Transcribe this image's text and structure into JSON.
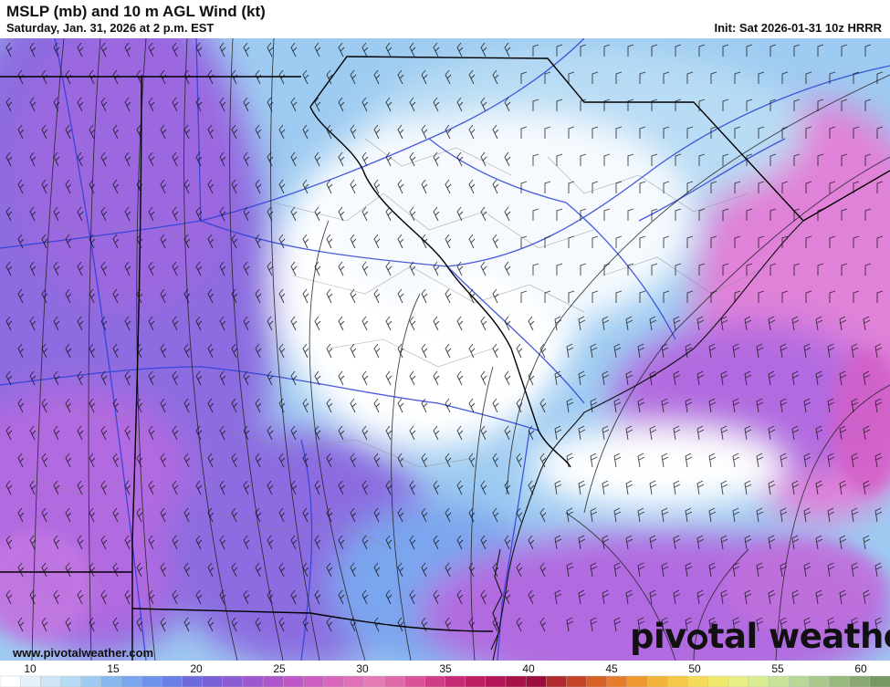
{
  "header": {
    "title": "MSLP (mb) and 10 m AGL Wind (kt)",
    "subtitle": "Saturday, Jan. 31, 2026 at 2 p.m. EST",
    "init": "Init: Sat 2026-01-31 10z HRRR"
  },
  "map": {
    "variable": "10 m wind speed (kt) shaded, MSLP (mb) contours, wind barbs",
    "colors": {
      "calm": "#ffffff",
      "light_blue": "#b8dcf4",
      "mid_blue": "#7aa6ee",
      "purple": "#8c6ce0",
      "violet": "#b26be0",
      "magenta": "#e082d8",
      "state_border": "#000000",
      "county_border": "#8a8a8a",
      "highway": "#2a3fd6",
      "isobar": "#222222"
    }
  },
  "footer": {
    "website": "www.pivotalweather.com",
    "brand_left": "piv",
    "brand_right": "tal weather"
  },
  "colorbar": {
    "labels": [
      "10",
      "15",
      "20",
      "25",
      "30",
      "35",
      "40",
      "45",
      "50",
      "55",
      "60"
    ],
    "colors": [
      "#ffffff",
      "#e6f2fb",
      "#cfe6f7",
      "#b8dcf4",
      "#9ecbf1",
      "#86b8ee",
      "#7aa6ee",
      "#6f92ea",
      "#6b7fe4",
      "#6d6bdc",
      "#7a60d6",
      "#8c5cd2",
      "#9c58cd",
      "#ad56c9",
      "#bd58c6",
      "#cd5ec2",
      "#d966bd",
      "#e070b8",
      "#e47cb4",
      "#e06aa8",
      "#d85496",
      "#cf3e84",
      "#c62a74",
      "#bc1e64",
      "#b21656",
      "#a71048",
      "#9c0c3c",
      "#b02a2e",
      "#c44428",
      "#d66026",
      "#e47e2a",
      "#ee9a30",
      "#f2b43a",
      "#f4ca48",
      "#f4dc5a",
      "#f1e870",
      "#e8ee86",
      "#d8ec92",
      "#c8e49a",
      "#b8d898",
      "#a8c88c",
      "#98b87e",
      "#88a870",
      "#789862"
    ]
  }
}
